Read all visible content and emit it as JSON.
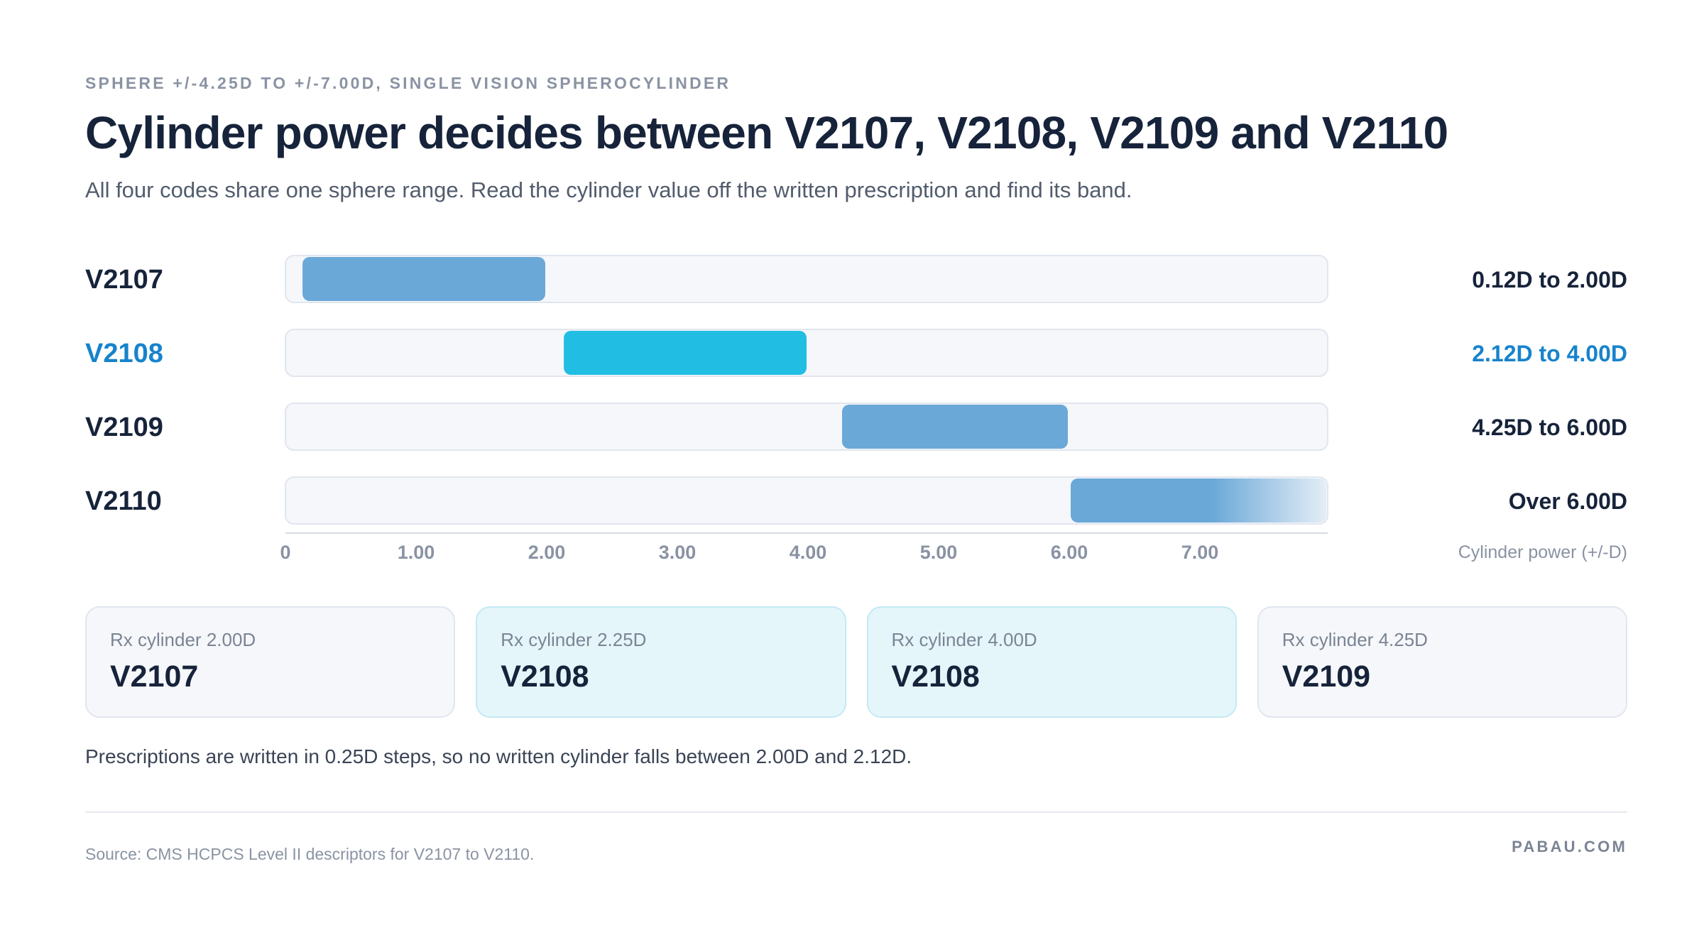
{
  "header": {
    "eyebrow": "SPHERE +/-4.25D TO +/-7.00D, SINGLE VISION SPHEROCYLINDER",
    "title": "Cylinder power decides between V2107, V2108, V2109 and V2110",
    "subtitle": "All four codes share one sphere range. Read the cylinder value off the written prescription and find its band."
  },
  "chart_data": {
    "type": "bar",
    "orientation": "horizontal-range",
    "xlabel": "Cylinder power (+/-D)",
    "xlim": [
      0,
      8
    ],
    "xticks": [
      {
        "value": 0,
        "label": "0"
      },
      {
        "value": 1,
        "label": "1.00"
      },
      {
        "value": 2,
        "label": "2.00"
      },
      {
        "value": 3,
        "label": "3.00"
      },
      {
        "value": 4,
        "label": "4.00"
      },
      {
        "value": 5,
        "label": "5.00"
      },
      {
        "value": 6,
        "label": "6.00"
      },
      {
        "value": 7,
        "label": "7.00"
      }
    ],
    "grid": false,
    "bands": [
      {
        "code": "V2107",
        "start": 0.12,
        "end": 2.0,
        "range_label": "0.12D to 2.00D",
        "highlight": false,
        "color": "#6aa8d8",
        "open_ended": false
      },
      {
        "code": "V2108",
        "start": 2.12,
        "end": 4.0,
        "range_label": "2.12D to 4.00D",
        "highlight": true,
        "color": "#22bde3",
        "open_ended": false
      },
      {
        "code": "V2109",
        "start": 4.25,
        "end": 6.0,
        "range_label": "4.25D to 6.00D",
        "highlight": false,
        "color": "#6aa8d8",
        "open_ended": false
      },
      {
        "code": "V2110",
        "start": 6.0,
        "end": null,
        "range_label": "Over 6.00D",
        "highlight": false,
        "color": "#6aa8d8",
        "open_ended": true
      }
    ],
    "colors": {
      "text": "#16233a",
      "highlight_text": "#1783cc",
      "track": "#f5f7fa",
      "track_border": "#e1e6ee",
      "axis": "#d5dbe3",
      "tick": "#8a93a3"
    }
  },
  "examples": [
    {
      "label": "Rx cylinder 2.00D",
      "code": "V2107",
      "tint": false
    },
    {
      "label": "Rx cylinder 2.25D",
      "code": "V2108",
      "tint": true
    },
    {
      "label": "Rx cylinder 4.00D",
      "code": "V2108",
      "tint": true
    },
    {
      "label": "Rx cylinder 4.25D",
      "code": "V2109",
      "tint": false
    }
  ],
  "footer": {
    "note": "Prescriptions are written in 0.25D steps, so no written cylinder falls between 2.00D and 2.12D.",
    "source": "Source: CMS HCPCS Level II descriptors for V2107 to V2110.",
    "brand": "PABAU.COM"
  }
}
